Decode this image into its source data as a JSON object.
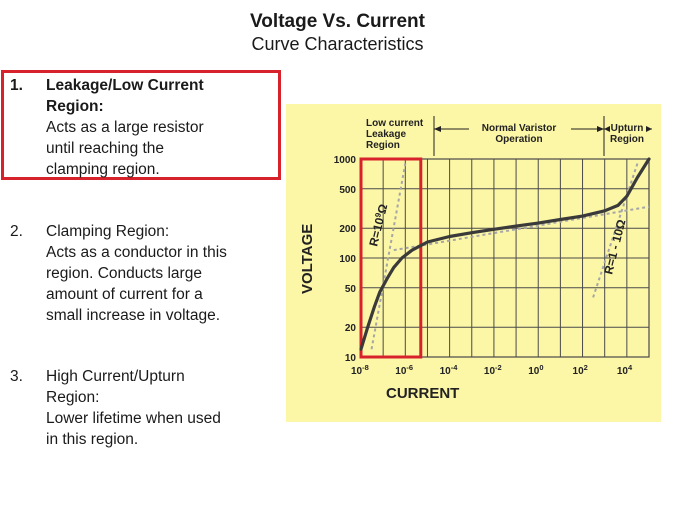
{
  "slide": {
    "title": "Voltage Vs. Current",
    "subtitle": "Curve Characteristics"
  },
  "items": [
    {
      "num": "1.",
      "heading_lines": [
        "Leakage/Low Current",
        "Region:"
      ],
      "text_lines": [
        "Acts as a large resistor",
        "until reaching the",
        "clamping region."
      ]
    },
    {
      "num": "2.",
      "heading_lines": [
        "Clamping Region:"
      ],
      "text_lines": [
        "Acts as a conductor in this",
        "region. Conducts large",
        "amount of current for a",
        "small increase in voltage."
      ]
    },
    {
      "num": "3.",
      "heading_lines": [
        "High Current/Upturn",
        "Region:"
      ],
      "text_lines": [
        "Lower lifetime when used",
        "in this region."
      ]
    }
  ],
  "chart_data": {
    "type": "line",
    "xlabel": "CURRENT",
    "ylabel": "VOLTAGE",
    "x_scale": "log",
    "y_scale": "log",
    "xlim": [
      1e-08,
      100000.0
    ],
    "ylim": [
      10,
      1000
    ],
    "x_tick_labels": [
      "10-8",
      "10-6",
      "10-4",
      "10-2",
      "100",
      "102",
      "104"
    ],
    "x_tick_values": [
      1e-08,
      1e-06,
      0.0001,
      0.01,
      1,
      100,
      10000
    ],
    "y_tick_labels": [
      "10",
      "20",
      "50",
      "100",
      "200",
      "500",
      "1000"
    ],
    "y_tick_values": [
      10,
      20,
      50,
      100,
      200,
      500,
      1000
    ],
    "grid": true,
    "region_labels": {
      "low": [
        "Low current",
        "Leakage",
        "Region"
      ],
      "normal": [
        "Normal Varistor",
        "Operation"
      ],
      "upturn": [
        "Upturn",
        "Region"
      ]
    },
    "annotations": {
      "r_high_prefix": "R=10",
      "r_high_exp": "9",
      "r_high_unit": "Ω",
      "r_low": "R=1 - 10Ω"
    },
    "series": [
      {
        "points": [
          [
            1e-08,
            12
          ],
          [
            2e-08,
            20
          ],
          [
            4e-08,
            32
          ],
          [
            7e-08,
            45
          ],
          [
            1.5e-07,
            62
          ],
          [
            3e-07,
            80
          ],
          [
            7e-07,
            100
          ],
          [
            2e-06,
            120
          ],
          [
            1e-05,
            145
          ],
          [
            0.0001,
            165
          ],
          [
            0.001,
            180
          ],
          [
            0.01,
            195
          ],
          [
            0.1,
            210
          ],
          [
            1,
            225
          ],
          [
            10,
            245
          ],
          [
            100,
            265
          ],
          [
            1000,
            300
          ],
          [
            4000,
            340
          ],
          [
            10000,
            420
          ],
          [
            30000,
            650
          ],
          [
            100000,
            1000
          ]
        ]
      }
    ],
    "highlight_region": [
      1e-08,
      5e-06
    ],
    "colors": {
      "background": "#fcf6a7",
      "curve": "#3a3a3a",
      "grid": "#4a4a4a",
      "highlight": "#d8222b",
      "asymptote": "#a6a6a6"
    }
  }
}
